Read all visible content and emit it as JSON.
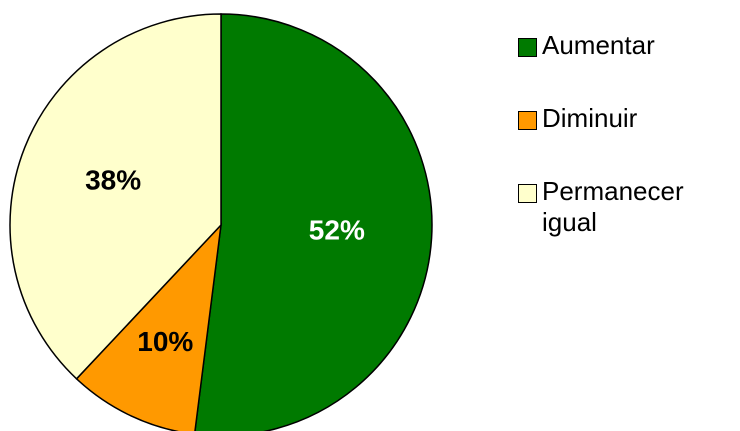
{
  "chart_data": {
    "type": "pie",
    "categories": [
      "Aumentar",
      "Diminuir",
      "Permanecer igual"
    ],
    "values": [
      52,
      10,
      38
    ],
    "value_labels": [
      "52%",
      "10%",
      "38%"
    ],
    "colors": [
      "#007a00",
      "#ff9900",
      "#ffffcc"
    ],
    "label_colors": [
      "#ffffff",
      "#000000",
      "#000000"
    ],
    "legend": "right"
  }
}
